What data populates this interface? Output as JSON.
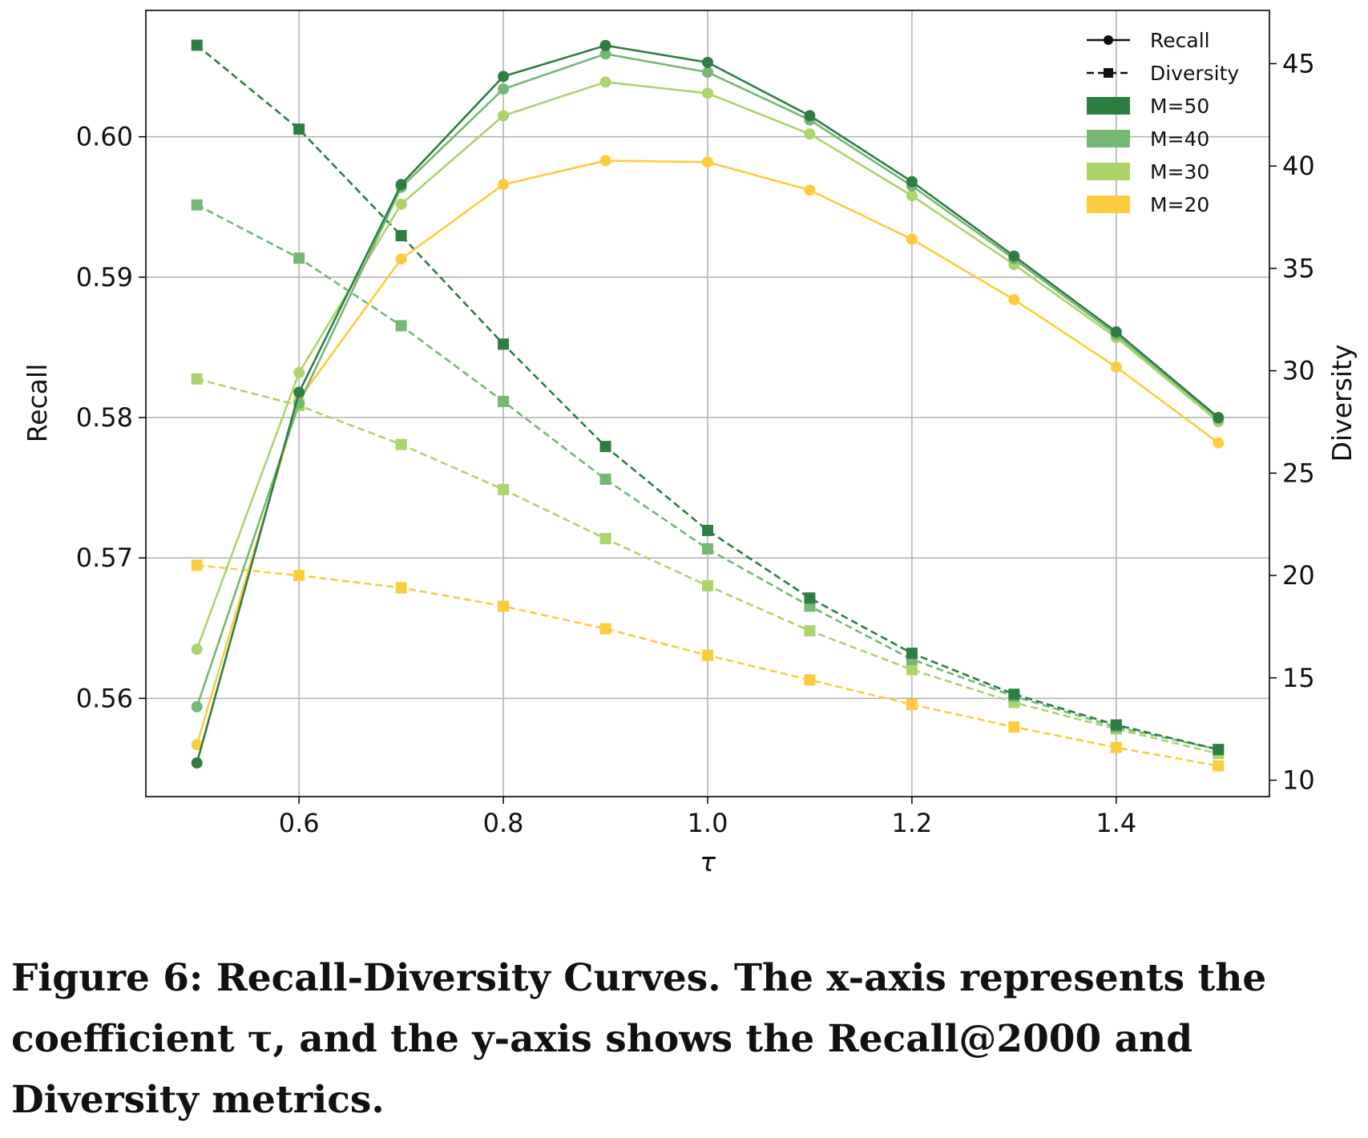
{
  "chart_data": {
    "type": "line",
    "xlabel": "τ",
    "ylabel": "Recall",
    "y2label": "Diversity",
    "xlim": [
      0.45,
      1.55
    ],
    "ylim": [
      0.553,
      0.609
    ],
    "y2lim": [
      9.2,
      47.6
    ],
    "grid": true,
    "legend_position": "top-right",
    "x_ticks": [
      {
        "v": 0.6,
        "label": "0.6"
      },
      {
        "v": 0.8,
        "label": "0.8"
      },
      {
        "v": 1.0,
        "label": "1.0"
      },
      {
        "v": 1.2,
        "label": "1.2"
      },
      {
        "v": 1.4,
        "label": "1.4"
      }
    ],
    "y_ticks": [
      {
        "v": 0.56,
        "label": "0.56"
      },
      {
        "v": 0.57,
        "label": "0.57"
      },
      {
        "v": 0.58,
        "label": "0.58"
      },
      {
        "v": 0.59,
        "label": "0.59"
      },
      {
        "v": 0.6,
        "label": "0.60"
      }
    ],
    "y2_ticks": [
      {
        "v": 10,
        "label": "10"
      },
      {
        "v": 15,
        "label": "15"
      },
      {
        "v": 20,
        "label": "20"
      },
      {
        "v": 25,
        "label": "25"
      },
      {
        "v": 30,
        "label": "30"
      },
      {
        "v": 35,
        "label": "35"
      },
      {
        "v": 40,
        "label": "40"
      },
      {
        "v": 45,
        "label": "45"
      }
    ],
    "x": [
      0.5,
      0.6,
      0.7,
      0.8,
      0.9,
      1.0,
      1.1,
      1.2,
      1.3,
      1.4,
      1.5
    ],
    "legend": {
      "styles": [
        {
          "label": "Recall",
          "style": "solid",
          "marker": "circle"
        },
        {
          "label": "Diversity",
          "style": "dashed",
          "marker": "square"
        }
      ],
      "groups": [
        {
          "label": "M=50",
          "color": "#2e7d43"
        },
        {
          "label": "M=40",
          "color": "#74b874"
        },
        {
          "label": "M=30",
          "color": "#add46a"
        },
        {
          "label": "M=20",
          "color": "#fdcc3e"
        }
      ]
    },
    "series": [
      {
        "name": "M=20",
        "color": "#fdcc3e",
        "recall": [
          0.5567,
          0.5813,
          0.5913,
          0.5966,
          0.5983,
          0.5982,
          0.5962,
          0.5927,
          0.5884,
          0.5836,
          0.5782
        ],
        "diversity": [
          20.5,
          20.0,
          19.4,
          18.5,
          17.4,
          16.1,
          14.9,
          13.7,
          12.6,
          11.6,
          10.7
        ]
      },
      {
        "name": "M=30",
        "color": "#add46a",
        "recall": [
          0.5635,
          0.5832,
          0.5952,
          0.6015,
          0.6039,
          0.6031,
          0.6002,
          0.5958,
          0.5909,
          0.5857,
          0.5797
        ],
        "diversity": [
          29.6,
          28.3,
          26.4,
          24.2,
          21.8,
          19.5,
          17.3,
          15.4,
          13.8,
          12.5,
          11.3
        ]
      },
      {
        "name": "M=40",
        "color": "#74b874",
        "recall": [
          0.5594,
          0.581,
          0.5964,
          0.6034,
          0.6059,
          0.6046,
          0.6012,
          0.5965,
          0.5913,
          0.5859,
          0.5799
        ],
        "diversity": [
          38.1,
          35.5,
          32.2,
          28.5,
          24.7,
          21.3,
          18.5,
          15.9,
          14.1,
          12.6,
          11.5
        ]
      },
      {
        "name": "M=50",
        "color": "#2e7d43",
        "recall": [
          0.5554,
          0.5818,
          0.5966,
          0.6043,
          0.6065,
          0.6053,
          0.6015,
          0.5968,
          0.5915,
          0.5861,
          0.58
        ],
        "diversity": [
          45.9,
          41.8,
          36.6,
          31.3,
          26.3,
          22.2,
          18.9,
          16.2,
          14.2,
          12.7,
          11.5
        ]
      }
    ]
  },
  "caption": "Figure 6: Recall-Diversity Curves. The x-axis represents the coefficient τ, and the y-axis shows the Recall@2000 and Diversity metrics."
}
